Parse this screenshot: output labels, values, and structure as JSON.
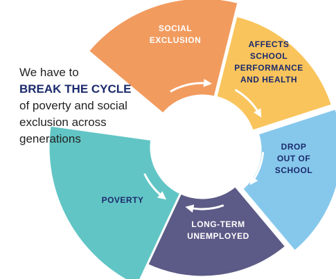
{
  "intro": {
    "lines": [
      "We have to",
      "BREAK THE CYCLE",
      "of poverty and social",
      "exclusion across",
      "generations"
    ]
  },
  "segments": [
    {
      "label_lines": [
        "SOCIAL",
        "EXCLUSION"
      ]
    },
    {
      "label_lines": [
        "AFFECTS",
        "SCHOOL",
        "PERFORMANCE",
        "AND HEALTH"
      ]
    },
    {
      "label_lines": [
        "DROP",
        "OUT OF",
        "SCHOOL"
      ]
    },
    {
      "label_lines": [
        "LONG-TERM",
        "UNEMPLOYED"
      ]
    },
    {
      "label_lines": [
        "POVERTY"
      ]
    }
  ]
}
